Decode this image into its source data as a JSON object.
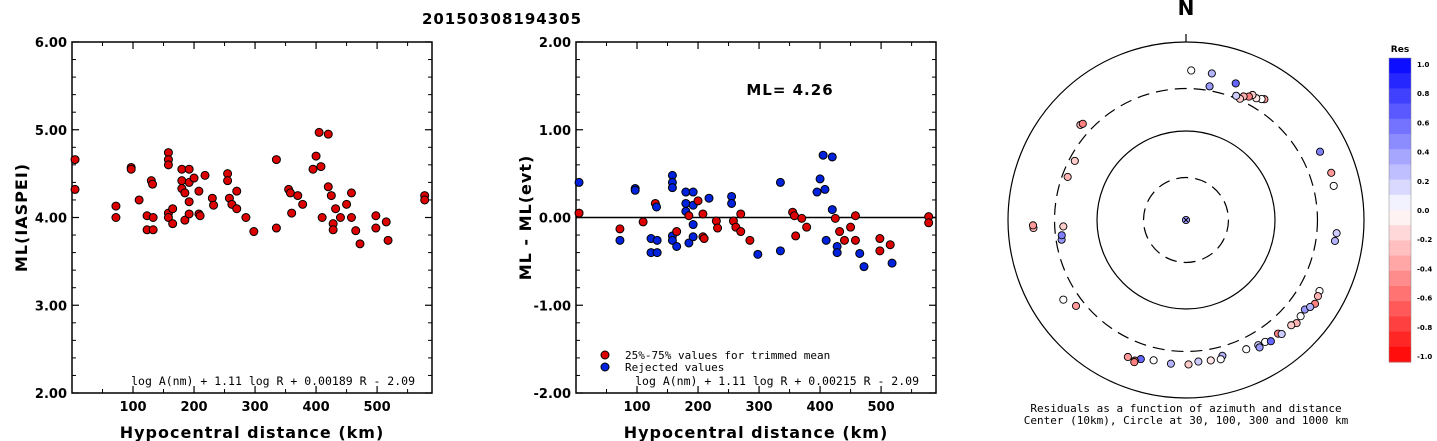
{
  "title": "20150308194305",
  "chart_data": [
    {
      "type": "scatter",
      "xlabel": "Hypocentral distance (km)",
      "ylabel": "ML(IASPEI)",
      "xlim": [
        0,
        590
      ],
      "ylim": [
        2.0,
        6.0
      ],
      "xticks": [
        "100",
        "200",
        "300",
        "400",
        "500"
      ],
      "yticks": [
        "2.00",
        "3.00",
        "4.00",
        "5.00",
        "6.00"
      ],
      "formula": "log A(nm) + 1.11 log R + 0.00189 R - 2.09",
      "points": [
        [
          5,
          4.66
        ],
        [
          5,
          4.32
        ],
        [
          72,
          4.13
        ],
        [
          72,
          4.0
        ],
        [
          97,
          4.57
        ],
        [
          97,
          4.55
        ],
        [
          110,
          4.2
        ],
        [
          123,
          4.02
        ],
        [
          123,
          3.86
        ],
        [
          130,
          4.42
        ],
        [
          132,
          4.38
        ],
        [
          133,
          4.0
        ],
        [
          133,
          3.86
        ],
        [
          158,
          4.74
        ],
        [
          158,
          4.66
        ],
        [
          158,
          4.6
        ],
        [
          158,
          4.05
        ],
        [
          158,
          4.0
        ],
        [
          165,
          4.1
        ],
        [
          165,
          3.93
        ],
        [
          180,
          4.55
        ],
        [
          180,
          4.42
        ],
        [
          180,
          4.33
        ],
        [
          185,
          4.28
        ],
        [
          185,
          3.97
        ],
        [
          192,
          4.55
        ],
        [
          192,
          4.4
        ],
        [
          192,
          4.18
        ],
        [
          192,
          4.04
        ],
        [
          200,
          4.45
        ],
        [
          208,
          4.3
        ],
        [
          208,
          4.04
        ],
        [
          210,
          4.02
        ],
        [
          218,
          4.48
        ],
        [
          230,
          4.22
        ],
        [
          232,
          4.14
        ],
        [
          255,
          4.5
        ],
        [
          255,
          4.42
        ],
        [
          258,
          4.22
        ],
        [
          262,
          4.15
        ],
        [
          270,
          4.3
        ],
        [
          270,
          4.1
        ],
        [
          285,
          4.0
        ],
        [
          298,
          3.84
        ],
        [
          335,
          4.66
        ],
        [
          335,
          3.88
        ],
        [
          355,
          4.32
        ],
        [
          358,
          4.28
        ],
        [
          360,
          4.05
        ],
        [
          370,
          4.25
        ],
        [
          378,
          4.15
        ],
        [
          395,
          4.55
        ],
        [
          400,
          4.7
        ],
        [
          405,
          4.97
        ],
        [
          408,
          4.58
        ],
        [
          410,
          4.0
        ],
        [
          420,
          4.95
        ],
        [
          420,
          4.35
        ],
        [
          425,
          4.25
        ],
        [
          428,
          3.93
        ],
        [
          428,
          3.86
        ],
        [
          432,
          4.1
        ],
        [
          440,
          4.0
        ],
        [
          450,
          4.15
        ],
        [
          458,
          4.28
        ],
        [
          458,
          4.0
        ],
        [
          465,
          3.85
        ],
        [
          472,
          3.7
        ],
        [
          498,
          4.02
        ],
        [
          498,
          3.88
        ],
        [
          515,
          3.95
        ],
        [
          518,
          3.74
        ],
        [
          578,
          4.25
        ],
        [
          578,
          4.2
        ]
      ]
    },
    {
      "type": "scatter",
      "xlabel": "Hypocentral distance (km)",
      "ylabel": "ML - ML(evt)",
      "xlim": [
        0,
        590
      ],
      "ylim": [
        -2.0,
        2.0
      ],
      "xticks": [
        "100",
        "200",
        "300",
        "400",
        "500"
      ],
      "yticks": [
        "-2.00",
        "-1.00",
        "0.00",
        "1.00",
        "2.00"
      ],
      "annotation": "ML= 4.26",
      "formula": "log A(nm) + 1.11 log R + 0.00215 R - 2.09",
      "legend": [
        "25%-75% values for trimmed mean",
        "Rejected values"
      ],
      "points": [
        [
          5,
          0.4,
          1
        ],
        [
          5,
          0.05,
          0
        ],
        [
          72,
          -0.13,
          0
        ],
        [
          72,
          -0.26,
          1
        ],
        [
          97,
          0.33,
          1
        ],
        [
          97,
          0.31,
          1
        ],
        [
          110,
          -0.05,
          0
        ],
        [
          123,
          -0.24,
          1
        ],
        [
          123,
          -0.4,
          1
        ],
        [
          130,
          0.16,
          0
        ],
        [
          132,
          0.12,
          1
        ],
        [
          133,
          -0.26,
          1
        ],
        [
          133,
          -0.4,
          1
        ],
        [
          158,
          0.48,
          1
        ],
        [
          158,
          0.4,
          1
        ],
        [
          158,
          0.34,
          1
        ],
        [
          158,
          -0.21,
          1
        ],
        [
          158,
          -0.26,
          1
        ],
        [
          165,
          -0.16,
          0
        ],
        [
          165,
          -0.33,
          1
        ],
        [
          180,
          0.29,
          1
        ],
        [
          180,
          0.16,
          1
        ],
        [
          180,
          0.07,
          1
        ],
        [
          185,
          0.02,
          0
        ],
        [
          185,
          -0.29,
          1
        ],
        [
          192,
          0.29,
          1
        ],
        [
          192,
          0.14,
          1
        ],
        [
          192,
          -0.08,
          1
        ],
        [
          192,
          -0.22,
          1
        ],
        [
          200,
          0.19,
          0
        ],
        [
          208,
          0.04,
          0
        ],
        [
          208,
          -0.22,
          0
        ],
        [
          210,
          -0.24,
          0
        ],
        [
          218,
          0.22,
          1
        ],
        [
          230,
          -0.04,
          0
        ],
        [
          232,
          -0.12,
          0
        ],
        [
          255,
          0.24,
          1
        ],
        [
          255,
          0.16,
          1
        ],
        [
          258,
          -0.04,
          0
        ],
        [
          262,
          -0.11,
          0
        ],
        [
          270,
          0.04,
          0
        ],
        [
          270,
          -0.16,
          0
        ],
        [
          285,
          -0.26,
          0
        ],
        [
          298,
          -0.42,
          1
        ],
        [
          335,
          0.4,
          1
        ],
        [
          335,
          -0.38,
          1
        ],
        [
          355,
          0.06,
          0
        ],
        [
          358,
          0.02,
          0
        ],
        [
          360,
          -0.21,
          0
        ],
        [
          370,
          -0.01,
          0
        ],
        [
          378,
          -0.11,
          0
        ],
        [
          395,
          0.29,
          1
        ],
        [
          400,
          0.44,
          1
        ],
        [
          405,
          0.71,
          1
        ],
        [
          408,
          0.32,
          1
        ],
        [
          410,
          -0.26,
          1
        ],
        [
          420,
          0.69,
          1
        ],
        [
          420,
          0.09,
          1
        ],
        [
          425,
          -0.01,
          0
        ],
        [
          428,
          -0.33,
          1
        ],
        [
          428,
          -0.4,
          1
        ],
        [
          432,
          -0.16,
          0
        ],
        [
          440,
          -0.26,
          0
        ],
        [
          450,
          -0.11,
          0
        ],
        [
          458,
          0.02,
          0
        ],
        [
          458,
          -0.26,
          0
        ],
        [
          465,
          -0.41,
          1
        ],
        [
          472,
          -0.56,
          1
        ],
        [
          498,
          -0.24,
          0
        ],
        [
          498,
          -0.38,
          0
        ],
        [
          515,
          -0.31,
          0
        ],
        [
          518,
          -0.52,
          1
        ],
        [
          578,
          0.01,
          0
        ],
        [
          578,
          -0.06,
          0
        ]
      ]
    },
    {
      "type": "scatter",
      "kind": "polar-residual-map",
      "north_label": "N",
      "caption_line1": "Residuals as a function of azimuth and distance",
      "caption_line2": "Center (10km), Circle at 30, 100, 300 and 1000 km",
      "colorbar_title": "Res",
      "colorbar_ticks": [
        "1.0",
        "0.8",
        "0.6",
        "0.4",
        "0.2",
        "0.0",
        "-0.2",
        "-0.4",
        "-0.6",
        "-0.8",
        "-1.0"
      ],
      "points": [
        [
          2,
          480,
          0.0
        ],
        [
          10,
          470,
          0.3
        ],
        [
          20,
          430,
          0.6
        ],
        [
          33,
          415,
          -0.4
        ],
        [
          32,
          400,
          0.0
        ],
        [
          30,
          380,
          -0.1
        ],
        [
          28,
          390,
          -0.2
        ],
        [
          27,
          360,
          -0.5
        ],
        [
          25,
          340,
          -0.3
        ],
        [
          24,
          310,
          -0.2
        ],
        [
          22,
          320,
          0.2
        ],
        [
          10,
          335,
          0.4
        ],
        [
          63,
          490,
          0.5
        ],
        [
          72,
          520,
          -0.4
        ],
        [
          77,
          505,
          0.0
        ],
        [
          95,
          500,
          0.2
        ],
        [
          98,
          490,
          0.3
        ],
        [
          118,
          500,
          0.0
        ],
        [
          120,
          515,
          -0.3
        ],
        [
          123,
          535,
          -0.5
        ],
        [
          127,
          470,
          0.4
        ],
        [
          125,
          505,
          0.3
        ],
        [
          130,
          480,
          0.0
        ],
        [
          133,
          500,
          -0.3
        ],
        [
          135,
          470,
          -0.2
        ],
        [
          141,
          440,
          -0.5
        ],
        [
          140,
          470,
          0.2
        ],
        [
          147,
          430,
          0.0
        ],
        [
          145,
          460,
          0.6
        ],
        [
          150,
          420,
          0.2
        ],
        [
          150,
          450,
          0.4
        ],
        [
          155,
          400,
          0.0
        ],
        [
          165,
          380,
          0.3
        ],
        [
          166,
          410,
          0.0
        ],
        [
          170,
          400,
          -0.1
        ],
        [
          175,
          395,
          0.2
        ],
        [
          179,
          420,
          -0.2
        ],
        [
          186,
          420,
          0.3
        ],
        [
          193,
          415,
          0.0
        ],
        [
          198,
          440,
          0.6
        ],
        [
          200,
          480,
          -0.5
        ],
        [
          203,
          470,
          -0.4
        ],
        [
          200,
          500,
          -0.5
        ],
        [
          232,
          370,
          -0.4
        ],
        [
          237,
          440,
          0.0
        ],
        [
          267,
          520,
          -0.3
        ],
        [
          268,
          525,
          -0.4
        ],
        [
          261,
          260,
          0.4
        ],
        [
          263,
          255,
          0.5
        ],
        [
          267,
          240,
          -0.2
        ],
        [
          290,
          260,
          -0.3
        ],
        [
          298,
          260,
          -0.2
        ],
        [
          312,
          395,
          -0.3
        ],
        [
          313,
          385,
          -0.5
        ],
        [
          0,
          0,
          0.4
        ]
      ]
    }
  ]
}
